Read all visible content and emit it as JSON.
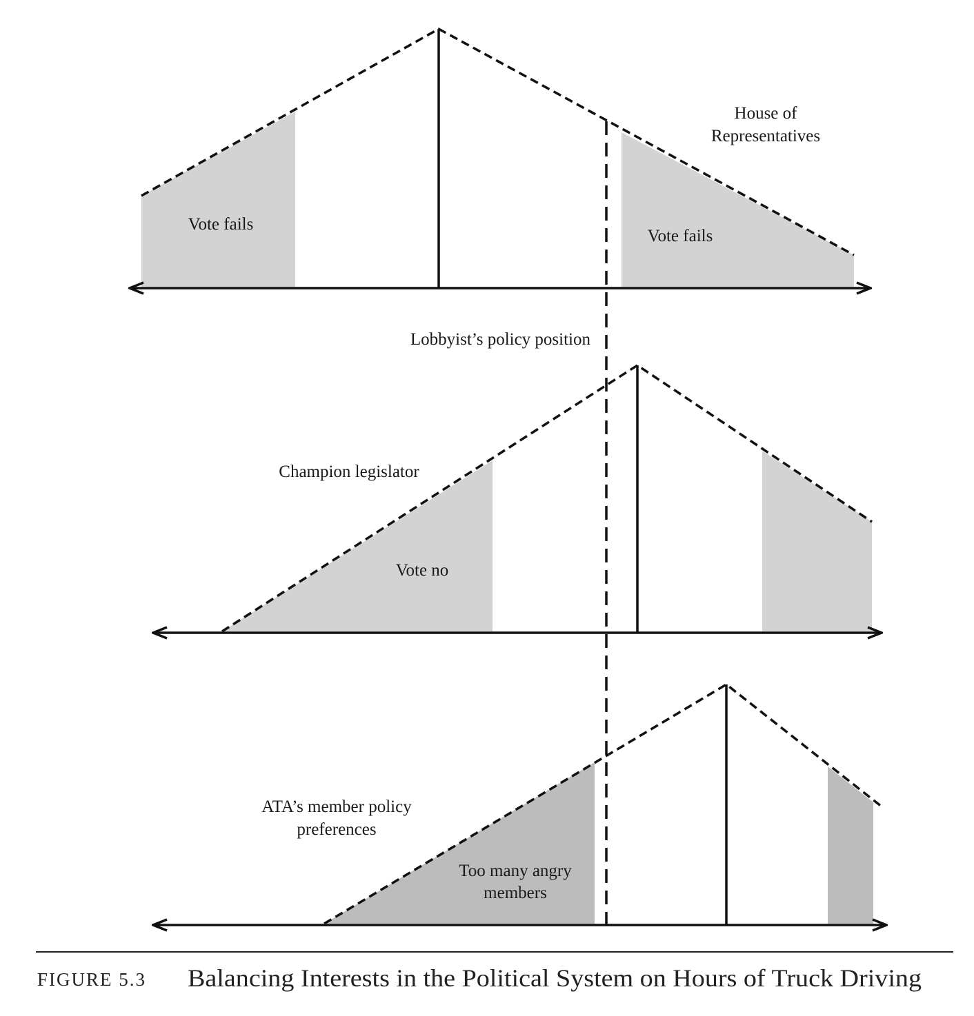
{
  "panels": {
    "house": {
      "title_line1": "House of",
      "title_line2": "Representatives",
      "left_region_label": "Vote fails",
      "right_region_label": "Vote fails"
    },
    "champion": {
      "title": "Champion legislator",
      "left_region_label": "Vote no"
    },
    "ata": {
      "title_line1": "ATA’s member policy",
      "title_line2": "preferences",
      "left_region_line1": "Too many angry",
      "left_region_line2": "members"
    }
  },
  "lobbyist_label": "Lobbyist’s policy position",
  "caption": {
    "label": "FIGURE 5.3",
    "title": "Balancing Interests in the Political System on Hours of Truck Driving"
  },
  "colors": {
    "shade_light": "#d3d3d3",
    "shade_dark": "#bcbcbc",
    "ink": "#111111"
  }
}
